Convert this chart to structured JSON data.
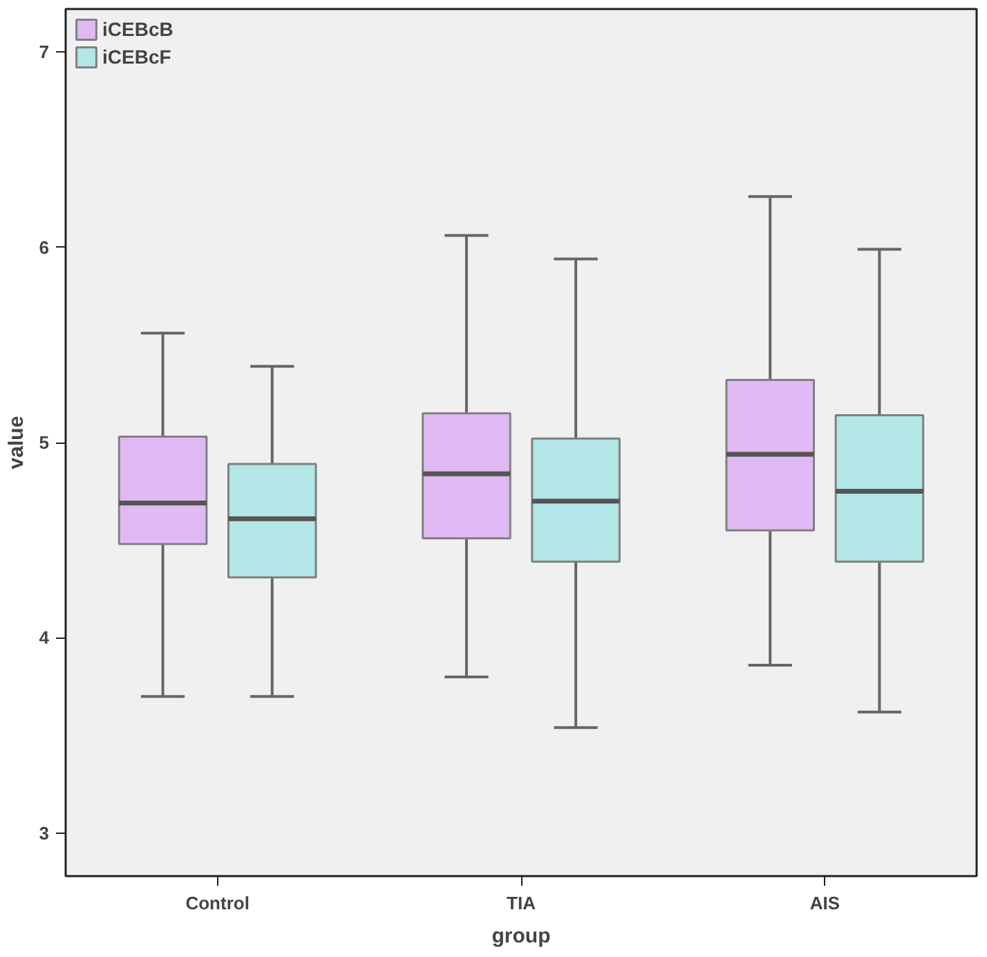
{
  "chart_data": {
    "type": "box",
    "xlabel": "group",
    "ylabel": "value",
    "categories": [
      "Control",
      "TIA",
      "AIS"
    ],
    "ylim": [
      2.78,
      7.22
    ],
    "yticks": [
      3,
      4,
      5,
      6,
      7
    ],
    "legend": "top left",
    "grid": false,
    "series": [
      {
        "name": "iCEBcB",
        "color": "#e1b9f2",
        "boxes": [
          {
            "low": 3.7,
            "q1": 4.48,
            "median": 4.69,
            "q3": 5.03,
            "high": 5.56
          },
          {
            "low": 3.8,
            "q1": 4.51,
            "median": 4.84,
            "q3": 5.15,
            "high": 6.06
          },
          {
            "low": 3.86,
            "q1": 4.55,
            "median": 4.94,
            "q3": 5.32,
            "high": 6.26
          }
        ]
      },
      {
        "name": "iCEBcF",
        "color": "#b3e6e6",
        "boxes": [
          {
            "low": 3.7,
            "q1": 4.31,
            "median": 4.61,
            "q3": 4.89,
            "high": 5.39
          },
          {
            "low": 3.54,
            "q1": 4.39,
            "median": 4.7,
            "q3": 5.02,
            "high": 5.94
          },
          {
            "low": 3.62,
            "q1": 4.39,
            "median": 4.75,
            "q3": 5.14,
            "high": 5.99
          }
        ]
      }
    ]
  }
}
